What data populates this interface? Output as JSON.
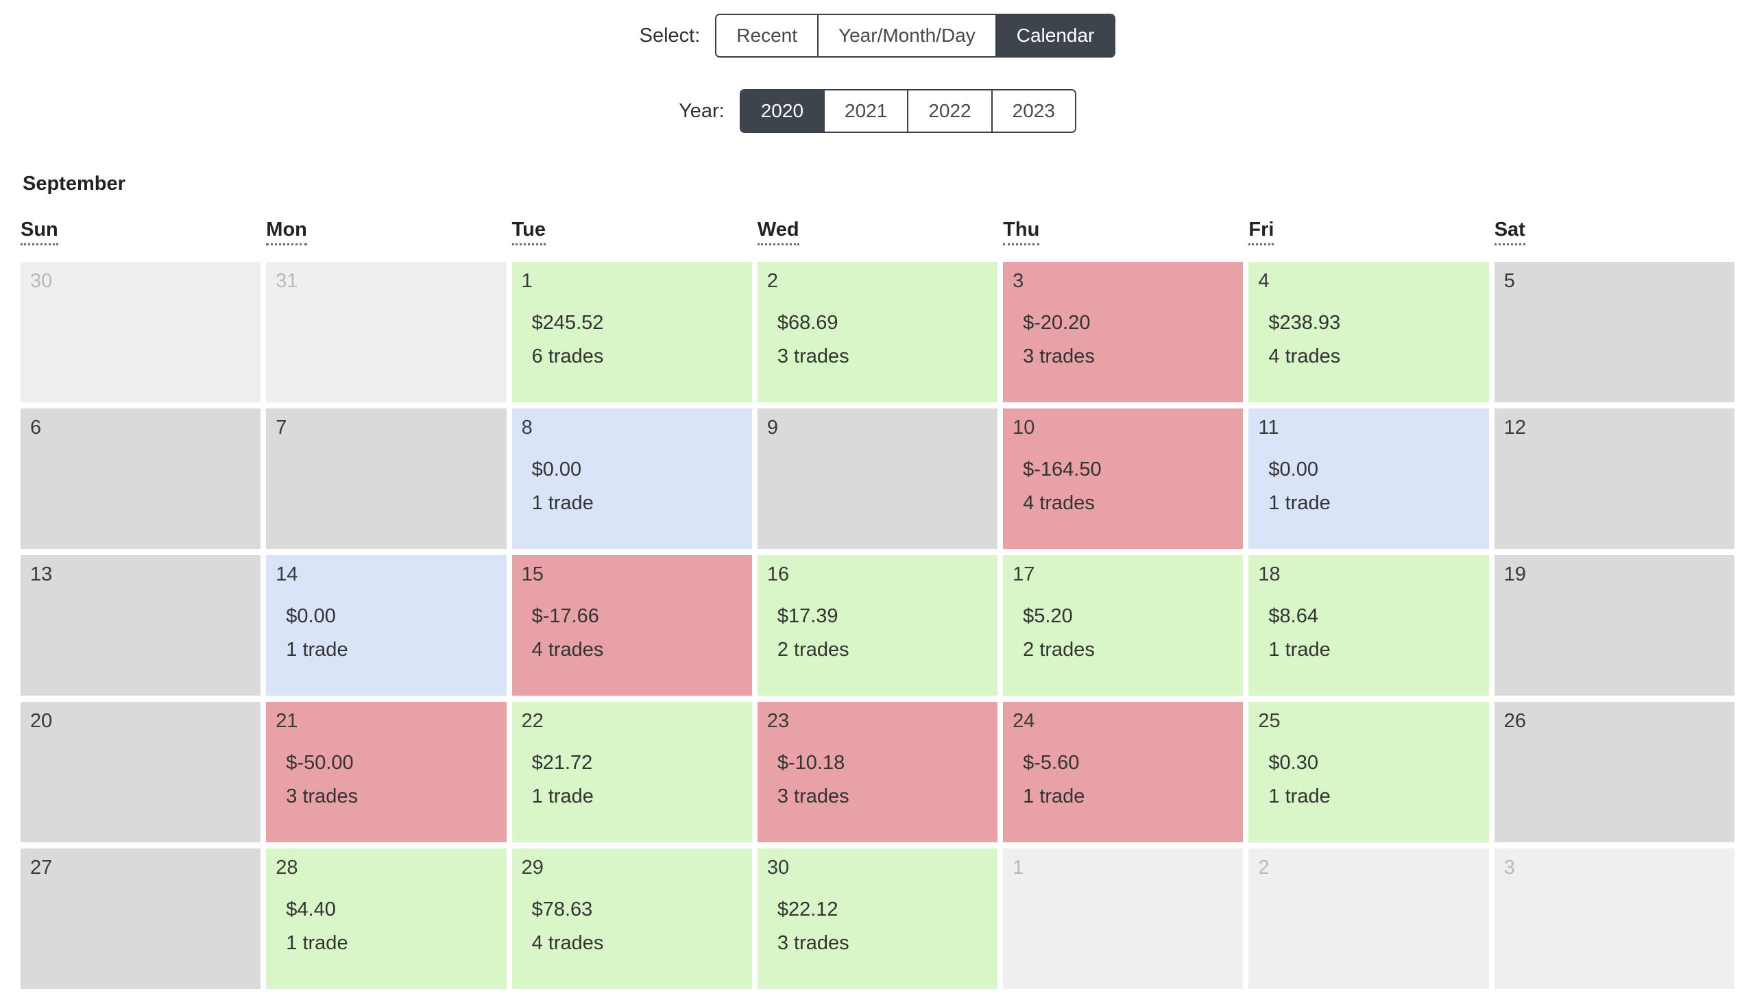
{
  "select_control": {
    "label": "Select:",
    "options": [
      {
        "label": "Recent",
        "selected": false
      },
      {
        "label": "Year/Month/Day",
        "selected": false
      },
      {
        "label": "Calendar",
        "selected": true
      }
    ]
  },
  "year_control": {
    "label": "Year:",
    "options": [
      {
        "label": "2020",
        "selected": true
      },
      {
        "label": "2021",
        "selected": false
      },
      {
        "label": "2022",
        "selected": false
      },
      {
        "label": "2023",
        "selected": false
      }
    ]
  },
  "calendar": {
    "month_title": "September",
    "day_headers": [
      "Sun",
      "Mon",
      "Tue",
      "Wed",
      "Thu",
      "Fri",
      "Sat"
    ],
    "colors": {
      "profit": "#d9f6c8",
      "loss": "#e8a1a6",
      "flat": "#d9e4f8",
      "none": "#dadada",
      "outside": "#efefef",
      "selected_button": "#3d444c",
      "button_border": "#3a4149"
    },
    "weeks": [
      [
        {
          "day": "30",
          "state": "outside"
        },
        {
          "day": "31",
          "state": "outside"
        },
        {
          "day": "1",
          "state": "profit",
          "amount": "$245.52",
          "trades": "6 trades"
        },
        {
          "day": "2",
          "state": "profit",
          "amount": "$68.69",
          "trades": "3 trades"
        },
        {
          "day": "3",
          "state": "loss",
          "amount": "$-20.20",
          "trades": "3 trades"
        },
        {
          "day": "4",
          "state": "profit",
          "amount": "$238.93",
          "trades": "4 trades"
        },
        {
          "day": "5",
          "state": "none"
        }
      ],
      [
        {
          "day": "6",
          "state": "none"
        },
        {
          "day": "7",
          "state": "none"
        },
        {
          "day": "8",
          "state": "flat",
          "amount": "$0.00",
          "trades": "1 trade"
        },
        {
          "day": "9",
          "state": "none"
        },
        {
          "day": "10",
          "state": "loss",
          "amount": "$-164.50",
          "trades": "4 trades"
        },
        {
          "day": "11",
          "state": "flat",
          "amount": "$0.00",
          "trades": "1 trade"
        },
        {
          "day": "12",
          "state": "none"
        }
      ],
      [
        {
          "day": "13",
          "state": "none"
        },
        {
          "day": "14",
          "state": "flat",
          "amount": "$0.00",
          "trades": "1 trade"
        },
        {
          "day": "15",
          "state": "loss",
          "amount": "$-17.66",
          "trades": "4 trades"
        },
        {
          "day": "16",
          "state": "profit",
          "amount": "$17.39",
          "trades": "2 trades"
        },
        {
          "day": "17",
          "state": "profit",
          "amount": "$5.20",
          "trades": "2 trades"
        },
        {
          "day": "18",
          "state": "profit",
          "amount": "$8.64",
          "trades": "1 trade"
        },
        {
          "day": "19",
          "state": "none"
        }
      ],
      [
        {
          "day": "20",
          "state": "none"
        },
        {
          "day": "21",
          "state": "loss",
          "amount": "$-50.00",
          "trades": "3 trades"
        },
        {
          "day": "22",
          "state": "profit",
          "amount": "$21.72",
          "trades": "1 trade"
        },
        {
          "day": "23",
          "state": "loss",
          "amount": "$-10.18",
          "trades": "3 trades"
        },
        {
          "day": "24",
          "state": "loss",
          "amount": "$-5.60",
          "trades": "1 trade"
        },
        {
          "day": "25",
          "state": "profit",
          "amount": "$0.30",
          "trades": "1 trade"
        },
        {
          "day": "26",
          "state": "none"
        }
      ],
      [
        {
          "day": "27",
          "state": "none"
        },
        {
          "day": "28",
          "state": "profit",
          "amount": "$4.40",
          "trades": "1 trade"
        },
        {
          "day": "29",
          "state": "profit",
          "amount": "$78.63",
          "trades": "4 trades"
        },
        {
          "day": "30",
          "state": "profit",
          "amount": "$22.12",
          "trades": "3 trades"
        },
        {
          "day": "1",
          "state": "outside"
        },
        {
          "day": "2",
          "state": "outside"
        },
        {
          "day": "3",
          "state": "outside"
        }
      ]
    ]
  }
}
